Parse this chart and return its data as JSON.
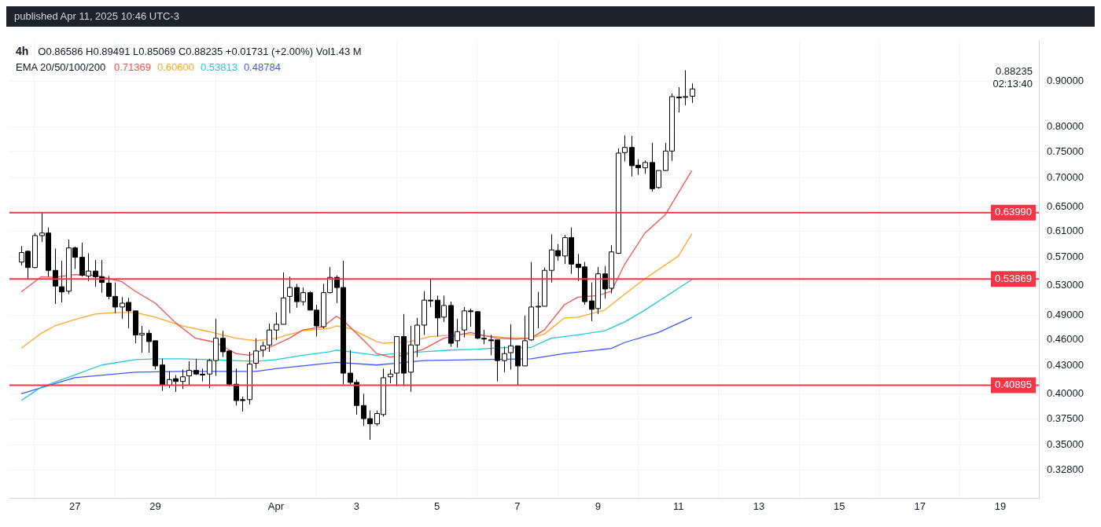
{
  "chart_data": {
    "type": "candlestick",
    "title": "4h",
    "subtitle": "O0.86586 H0.89491 L0.85069 C0.88235 +0.01731 (+2.00%) Vol1.43 M",
    "legend_title": "EMA 20/50/100/200",
    "legend": "top left",
    "log": true,
    "grid": true,
    "x": [
      "2025-03-25T16:00",
      "2025-03-25T20:00",
      "2025-03-26T00:00",
      "2025-03-26T04:00",
      "2025-03-26T08:00",
      "2025-03-26T12:00",
      "2025-03-26T16:00",
      "2025-03-26T20:00",
      "2025-03-27T00:00",
      "2025-03-27T04:00",
      "2025-03-27T08:00",
      "2025-03-27T12:00",
      "2025-03-27T16:00",
      "2025-03-27T20:00",
      "2025-03-28T00:00",
      "2025-03-28T04:00",
      "2025-03-28T08:00",
      "2025-03-28T12:00",
      "2025-03-28T16:00",
      "2025-03-28T20:00",
      "2025-03-29T00:00",
      "2025-03-29T04:00",
      "2025-03-29T08:00",
      "2025-03-29T12:00",
      "2025-03-29T16:00",
      "2025-03-29T20:00",
      "2025-03-30T00:00",
      "2025-03-30T04:00",
      "2025-03-30T08:00",
      "2025-03-30T12:00",
      "2025-03-30T16:00",
      "2025-03-30T20:00",
      "2025-03-31T00:00",
      "2025-03-31T04:00",
      "2025-03-31T08:00",
      "2025-03-31T12:00",
      "2025-03-31T16:00",
      "2025-03-31T20:00",
      "2025-04-01T00:00",
      "2025-04-01T04:00",
      "2025-04-01T08:00",
      "2025-04-01T12:00",
      "2025-04-01T16:00",
      "2025-04-01T20:00",
      "2025-04-02T00:00",
      "2025-04-02T04:00",
      "2025-04-02T08:00",
      "2025-04-02T12:00",
      "2025-04-02T16:00",
      "2025-04-02T20:00",
      "2025-04-03T00:00",
      "2025-04-03T04:00",
      "2025-04-03T08:00",
      "2025-04-03T12:00",
      "2025-04-03T16:00",
      "2025-04-03T20:00",
      "2025-04-04T00:00",
      "2025-04-04T04:00",
      "2025-04-04T08:00",
      "2025-04-04T12:00",
      "2025-04-04T16:00",
      "2025-04-04T20:00",
      "2025-04-05T00:00",
      "2025-04-05T04:00",
      "2025-04-05T08:00",
      "2025-04-05T12:00",
      "2025-04-05T16:00",
      "2025-04-05T20:00",
      "2025-04-06T00:00",
      "2025-04-06T04:00",
      "2025-04-06T08:00",
      "2025-04-06T12:00",
      "2025-04-06T16:00",
      "2025-04-06T20:00",
      "2025-04-07T00:00",
      "2025-04-07T04:00",
      "2025-04-07T08:00",
      "2025-04-07T12:00",
      "2025-04-07T16:00",
      "2025-04-07T20:00",
      "2025-04-08T00:00",
      "2025-04-08T04:00",
      "2025-04-08T08:00",
      "2025-04-08T12:00",
      "2025-04-08T16:00",
      "2025-04-08T20:00",
      "2025-04-09T00:00",
      "2025-04-09T04:00",
      "2025-04-09T08:00",
      "2025-04-09T12:00",
      "2025-04-09T16:00",
      "2025-04-09T20:00",
      "2025-04-10T00:00",
      "2025-04-10T04:00",
      "2025-04-10T08:00",
      "2025-04-10T12:00",
      "2025-04-10T16:00",
      "2025-04-10T20:00",
      "2025-04-11T00:00",
      "2025-04-11T04:00",
      "2025-04-11T08:00"
    ],
    "ohlc": [
      [
        0.563,
        0.587,
        0.558,
        0.577
      ],
      [
        0.579,
        0.58,
        0.538,
        0.555
      ],
      [
        0.555,
        0.607,
        0.554,
        0.603
      ],
      [
        0.603,
        0.6399,
        0.593,
        0.607
      ],
      [
        0.607,
        0.616,
        0.542,
        0.551
      ],
      [
        0.551,
        0.583,
        0.505,
        0.529
      ],
      [
        0.528,
        0.565,
        0.507,
        0.521
      ],
      [
        0.522,
        0.597,
        0.518,
        0.584
      ],
      [
        0.584,
        0.586,
        0.553,
        0.57
      ],
      [
        0.57,
        0.592,
        0.542,
        0.544
      ],
      [
        0.543,
        0.576,
        0.536,
        0.55
      ],
      [
        0.55,
        0.566,
        0.528,
        0.542
      ],
      [
        0.542,
        0.566,
        0.52,
        0.534
      ],
      [
        0.533,
        0.543,
        0.511,
        0.515
      ],
      [
        0.515,
        0.534,
        0.493,
        0.501
      ],
      [
        0.501,
        0.514,
        0.486,
        0.506
      ],
      [
        0.507,
        0.513,
        0.474,
        0.496
      ],
      [
        0.496,
        0.496,
        0.456,
        0.466
      ],
      [
        0.466,
        0.477,
        0.445,
        0.468
      ],
      [
        0.468,
        0.472,
        0.445,
        0.458
      ],
      [
        0.459,
        0.459,
        0.426,
        0.43
      ],
      [
        0.431,
        0.438,
        0.403,
        0.409
      ],
      [
        0.409,
        0.424,
        0.406,
        0.415
      ],
      [
        0.416,
        0.42,
        0.402,
        0.413
      ],
      [
        0.413,
        0.426,
        0.405,
        0.418
      ],
      [
        0.419,
        0.435,
        0.409,
        0.425
      ],
      [
        0.425,
        0.438,
        0.42,
        0.421
      ],
      [
        0.421,
        0.427,
        0.413,
        0.42
      ],
      [
        0.421,
        0.438,
        0.406,
        0.436
      ],
      [
        0.436,
        0.486,
        0.419,
        0.462
      ],
      [
        0.462,
        0.471,
        0.44,
        0.446
      ],
      [
        0.447,
        0.447,
        0.408,
        0.41
      ],
      [
        0.41,
        0.427,
        0.388,
        0.393
      ],
      [
        0.394,
        0.397,
        0.382,
        0.393
      ],
      [
        0.394,
        0.446,
        0.389,
        0.432
      ],
      [
        0.433,
        0.462,
        0.427,
        0.447
      ],
      [
        0.448,
        0.458,
        0.44,
        0.453
      ],
      [
        0.454,
        0.48,
        0.446,
        0.472
      ],
      [
        0.472,
        0.494,
        0.46,
        0.479
      ],
      [
        0.479,
        0.548,
        0.479,
        0.513
      ],
      [
        0.515,
        0.542,
        0.493,
        0.527
      ],
      [
        0.527,
        0.532,
        0.5,
        0.508
      ],
      [
        0.508,
        0.527,
        0.503,
        0.52
      ],
      [
        0.52,
        0.522,
        0.497,
        0.497
      ],
      [
        0.497,
        0.504,
        0.464,
        0.477
      ],
      [
        0.476,
        0.532,
        0.474,
        0.52
      ],
      [
        0.52,
        0.556,
        0.519,
        0.541
      ],
      [
        0.541,
        0.544,
        0.506,
        0.527
      ],
      [
        0.527,
        0.565,
        0.41,
        0.422
      ],
      [
        0.422,
        0.448,
        0.41,
        0.412
      ],
      [
        0.412,
        0.415,
        0.379,
        0.388
      ],
      [
        0.388,
        0.4,
        0.368,
        0.375
      ],
      [
        0.375,
        0.383,
        0.355,
        0.37
      ],
      [
        0.37,
        0.383,
        0.368,
        0.38
      ],
      [
        0.379,
        0.427,
        0.377,
        0.417
      ],
      [
        0.418,
        0.426,
        0.411,
        0.421
      ],
      [
        0.422,
        0.464,
        0.408,
        0.464
      ],
      [
        0.464,
        0.492,
        0.408,
        0.422
      ],
      [
        0.423,
        0.477,
        0.402,
        0.454
      ],
      [
        0.454,
        0.487,
        0.44,
        0.478
      ],
      [
        0.478,
        0.522,
        0.466,
        0.51
      ],
      [
        0.51,
        0.5387,
        0.501,
        0.509
      ],
      [
        0.51,
        0.516,
        0.464,
        0.487
      ],
      [
        0.488,
        0.516,
        0.482,
        0.503
      ],
      [
        0.503,
        0.508,
        0.452,
        0.456
      ],
      [
        0.459,
        0.486,
        0.451,
        0.47
      ],
      [
        0.472,
        0.501,
        0.463,
        0.496
      ],
      [
        0.496,
        0.499,
        0.476,
        0.495
      ],
      [
        0.495,
        0.495,
        0.461,
        0.462
      ],
      [
        0.462,
        0.472,
        0.455,
        0.461
      ],
      [
        0.46,
        0.466,
        0.442,
        0.459
      ],
      [
        0.46,
        0.46,
        0.413,
        0.436
      ],
      [
        0.436,
        0.452,
        0.423,
        0.444
      ],
      [
        0.445,
        0.479,
        0.426,
        0.453
      ],
      [
        0.453,
        0.453,
        0.409,
        0.43
      ],
      [
        0.43,
        0.49,
        0.43,
        0.459
      ],
      [
        0.46,
        0.563,
        0.459,
        0.501
      ],
      [
        0.501,
        0.521,
        0.474,
        0.502
      ],
      [
        0.502,
        0.555,
        0.502,
        0.551
      ],
      [
        0.551,
        0.605,
        0.534,
        0.581
      ],
      [
        0.58,
        0.59,
        0.565,
        0.572
      ],
      [
        0.572,
        0.604,
        0.56,
        0.6
      ],
      [
        0.6,
        0.616,
        0.546,
        0.56
      ],
      [
        0.56,
        0.575,
        0.536,
        0.555
      ],
      [
        0.556,
        0.563,
        0.504,
        0.508
      ],
      [
        0.509,
        0.534,
        0.483,
        0.498
      ],
      [
        0.499,
        0.556,
        0.492,
        0.546
      ],
      [
        0.546,
        0.557,
        0.512,
        0.525
      ],
      [
        0.526,
        0.588,
        0.519,
        0.578
      ],
      [
        0.576,
        0.756,
        0.575,
        0.747
      ],
      [
        0.748,
        0.782,
        0.731,
        0.758
      ],
      [
        0.758,
        0.781,
        0.703,
        0.723
      ],
      [
        0.724,
        0.735,
        0.706,
        0.719
      ],
      [
        0.719,
        0.733,
        0.708,
        0.729
      ],
      [
        0.729,
        0.767,
        0.676,
        0.681
      ],
      [
        0.683,
        0.714,
        0.681,
        0.714
      ],
      [
        0.714,
        0.767,
        0.713,
        0.751
      ],
      [
        0.751,
        0.872,
        0.732,
        0.865
      ],
      [
        0.864,
        0.886,
        0.83,
        0.862
      ],
      [
        0.864,
        0.926,
        0.846,
        0.865
      ],
      [
        0.86586,
        0.89491,
        0.85069,
        0.88235
      ]
    ],
    "series": [
      {
        "type": "line",
        "name": "0.71369",
        "color": "#ef5350",
        "x": [
          "2025-03-25T16:00",
          "2025-03-26T04:00",
          "2025-03-26T12:00",
          "2025-03-27T00:00",
          "2025-03-27T12:00",
          "2025-03-28T04:00",
          "2025-03-28T12:00",
          "2025-03-29T00:00",
          "2025-03-29T12:00",
          "2025-03-30T00:00",
          "2025-03-30T12:00",
          "2025-03-31T00:00",
          "2025-03-31T08:00",
          "2025-03-31T20:00",
          "2025-04-01T08:00",
          "2025-04-01T16:00",
          "2025-04-02T04:00",
          "2025-04-02T12:00",
          "2025-04-02T16:00",
          "2025-04-03T04:00",
          "2025-04-03T12:00",
          "2025-04-03T20:00",
          "2025-04-04T04:00",
          "2025-04-04T16:00",
          "2025-04-05T04:00",
          "2025-04-05T20:00",
          "2025-04-06T00:00",
          "2025-04-06T12:00",
          "2025-04-07T00:00",
          "2025-04-07T08:00",
          "2025-04-07T16:00",
          "2025-04-08T04:00",
          "2025-04-08T12:00",
          "2025-04-09T00:00",
          "2025-04-09T08:00",
          "2025-04-09T16:00",
          "2025-04-10T04:00",
          "2025-04-10T16:00",
          "2025-04-11T08:00"
        ],
        "values": [
          0.521,
          0.542,
          0.541,
          0.545,
          0.544,
          0.535,
          0.522,
          0.506,
          0.481,
          0.462,
          0.457,
          0.444,
          0.442,
          0.451,
          0.462,
          0.472,
          0.476,
          0.489,
          0.484,
          0.46,
          0.444,
          0.44,
          0.442,
          0.449,
          0.462,
          0.469,
          0.467,
          0.462,
          0.461,
          0.462,
          0.472,
          0.504,
          0.514,
          0.516,
          0.522,
          0.56,
          0.607,
          0.636,
          0.714
        ]
      },
      {
        "type": "line",
        "name": "0.60600",
        "color": "#ffa726",
        "x": [
          "2025-03-25T16:00",
          "2025-03-26T04:00",
          "2025-03-26T12:00",
          "2025-03-27T00:00",
          "2025-03-27T12:00",
          "2025-03-28T00:00",
          "2025-03-28T12:00",
          "2025-03-29T00:00",
          "2025-03-29T16:00",
          "2025-03-30T08:00",
          "2025-03-31T00:00",
          "2025-03-31T12:00",
          "2025-04-01T00:00",
          "2025-04-01T16:00",
          "2025-04-02T08:00",
          "2025-04-02T12:00",
          "2025-04-02T20:00",
          "2025-04-03T12:00",
          "2025-04-03T16:00",
          "2025-04-04T08:00",
          "2025-04-04T20:00",
          "2025-04-05T16:00",
          "2025-04-06T16:00",
          "2025-04-07T08:00",
          "2025-04-07T16:00",
          "2025-04-08T04:00",
          "2025-04-08T12:00",
          "2025-04-09T04:00",
          "2025-04-09T16:00",
          "2025-04-10T04:00",
          "2025-04-11T00:00",
          "2025-04-11T08:00"
        ],
        "values": [
          0.45,
          0.468,
          0.477,
          0.485,
          0.492,
          0.494,
          0.494,
          0.488,
          0.477,
          0.47,
          0.462,
          0.459,
          0.462,
          0.471,
          0.474,
          0.477,
          0.474,
          0.458,
          0.456,
          0.458,
          0.464,
          0.467,
          0.463,
          0.462,
          0.467,
          0.487,
          0.488,
          0.497,
          0.518,
          0.539,
          0.572,
          0.606
        ]
      },
      {
        "type": "line",
        "name": "0.53813",
        "color": "#26c6da",
        "x": [
          "2025-03-25T16:00",
          "2025-03-26T04:00",
          "2025-03-27T00:00",
          "2025-03-27T16:00",
          "2025-03-28T12:00",
          "2025-03-29T00:00",
          "2025-03-29T16:00",
          "2025-03-30T08:00",
          "2025-03-31T00:00",
          "2025-03-31T12:00",
          "2025-04-01T00:00",
          "2025-04-01T16:00",
          "2025-04-02T08:00",
          "2025-04-02T12:00",
          "2025-04-03T04:00",
          "2025-04-03T12:00",
          "2025-04-04T00:00",
          "2025-04-04T16:00",
          "2025-04-05T08:00",
          "2025-04-06T00:00",
          "2025-04-06T16:00",
          "2025-04-07T08:00",
          "2025-04-07T20:00",
          "2025-04-08T12:00",
          "2025-04-09T04:00",
          "2025-04-09T16:00",
          "2025-04-10T04:00",
          "2025-04-11T08:00"
        ],
        "values": [
          0.393,
          0.407,
          0.42,
          0.431,
          0.437,
          0.438,
          0.438,
          0.437,
          0.436,
          0.435,
          0.437,
          0.442,
          0.446,
          0.448,
          0.444,
          0.442,
          0.444,
          0.446,
          0.448,
          0.449,
          0.451,
          0.451,
          0.462,
          0.466,
          0.471,
          0.482,
          0.497,
          0.538
        ]
      },
      {
        "type": "line",
        "name": "0.48784",
        "color": "#3d5afe",
        "x": [
          "2025-03-25T16:00",
          "2025-03-27T00:00",
          "2025-03-28T12:00",
          "2025-03-29T16:00",
          "2025-03-31T12:00",
          "2025-04-01T00:00",
          "2025-04-02T12:00",
          "2025-04-03T12:00",
          "2025-04-04T16:00",
          "2025-04-06T00:00",
          "2025-04-07T08:00",
          "2025-04-08T04:00",
          "2025-04-09T08:00",
          "2025-04-09T16:00",
          "2025-04-10T12:00",
          "2025-04-11T08:00"
        ],
        "values": [
          0.4,
          0.417,
          0.423,
          0.424,
          0.424,
          0.427,
          0.434,
          0.431,
          0.436,
          0.437,
          0.438,
          0.444,
          0.45,
          0.457,
          0.469,
          0.488
        ]
      }
    ],
    "ref_lines": [
      {
        "axis": "y",
        "value": 0.6399,
        "label": "0.63990",
        "color": "#f23645"
      },
      {
        "axis": "y",
        "value": 0.53869,
        "label": "0.53869",
        "color": "#f23645"
      },
      {
        "axis": "y",
        "value": 0.40895,
        "label": "0.40895",
        "color": "#f23645"
      }
    ],
    "annotations": [
      "published Apr 11, 2025 10:46 UTC-3",
      "0.88235",
      "02:13:40"
    ],
    "xlim": [
      "2025-03-25T09:00",
      "2025-04-19T23:00"
    ],
    "xticks": [
      {
        "value": "2025-03-27",
        "label": "27"
      },
      {
        "value": "2025-03-29",
        "label": "29"
      },
      {
        "value": "2025-04-01",
        "label": "Apr"
      },
      {
        "value": "2025-04-03",
        "label": "3"
      },
      {
        "value": "2025-04-05",
        "label": "5"
      },
      {
        "value": "2025-04-07",
        "label": "7"
      },
      {
        "value": "2025-04-09",
        "label": "9"
      },
      {
        "value": "2025-04-11",
        "label": "11"
      },
      {
        "value": "2025-04-13",
        "label": "13"
      },
      {
        "value": "2025-04-15",
        "label": "15"
      },
      {
        "value": "2025-04-17",
        "label": "17"
      },
      {
        "value": "2025-04-19",
        "label": "19"
      }
    ],
    "ylim": [
      0.305,
      1.0
    ],
    "yticks": [
      {
        "value": 0.328,
        "label": "0.32800"
      },
      {
        "value": 0.35,
        "label": "0.35000"
      },
      {
        "value": 0.375,
        "label": "0.37500"
      },
      {
        "value": 0.4,
        "label": "0.40000"
      },
      {
        "value": 0.43,
        "label": "0.43000"
      },
      {
        "value": 0.46,
        "label": "0.46000"
      },
      {
        "value": 0.49,
        "label": "0.49000"
      },
      {
        "value": 0.53,
        "label": "0.53000"
      },
      {
        "value": 0.57,
        "label": "0.57000"
      },
      {
        "value": 0.61,
        "label": "0.61000"
      },
      {
        "value": 0.65,
        "label": "0.65000"
      },
      {
        "value": 0.7,
        "label": "0.70000"
      },
      {
        "value": 0.75,
        "label": "0.75000"
      },
      {
        "value": 0.8,
        "label": "0.80000"
      },
      {
        "value": 0.9,
        "label": "0.90000"
      }
    ]
  }
}
